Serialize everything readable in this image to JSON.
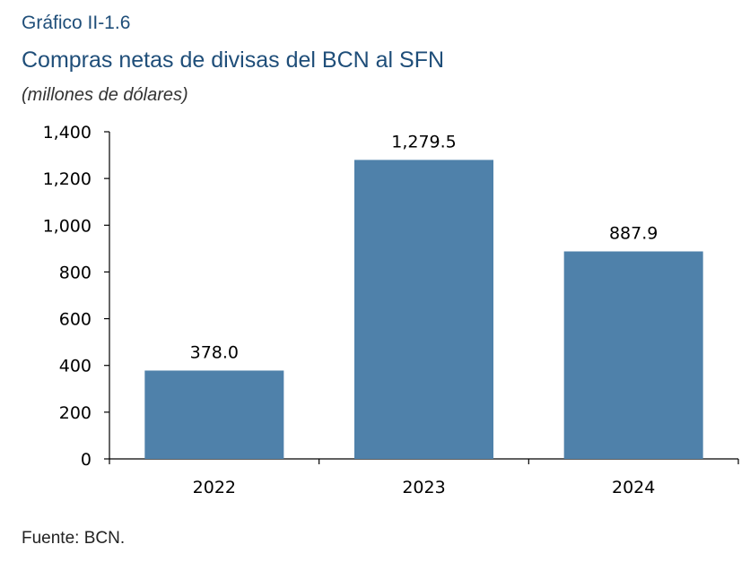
{
  "figure": {
    "number": "Gráfico II-1.6",
    "title": "Compras netas de divisas del BCN al SFN",
    "subtitle": "(millones de dólares)",
    "source": "Fuente: BCN."
  },
  "chart_data": {
    "type": "bar",
    "categories": [
      "2022",
      "2023",
      "2024"
    ],
    "values": [
      378.0,
      1279.5,
      887.9
    ],
    "data_labels": [
      "378.0",
      "1,279.5",
      "887.9"
    ],
    "ylim": [
      0,
      1400
    ],
    "yticks": [
      0,
      200,
      400,
      600,
      800,
      1000,
      1200,
      1400
    ],
    "ytick_labels": [
      "0",
      "200",
      "400",
      "600",
      "800",
      "1,000",
      "1,200",
      "1,400"
    ],
    "grid": false,
    "bar_color": "#4f81aa"
  }
}
